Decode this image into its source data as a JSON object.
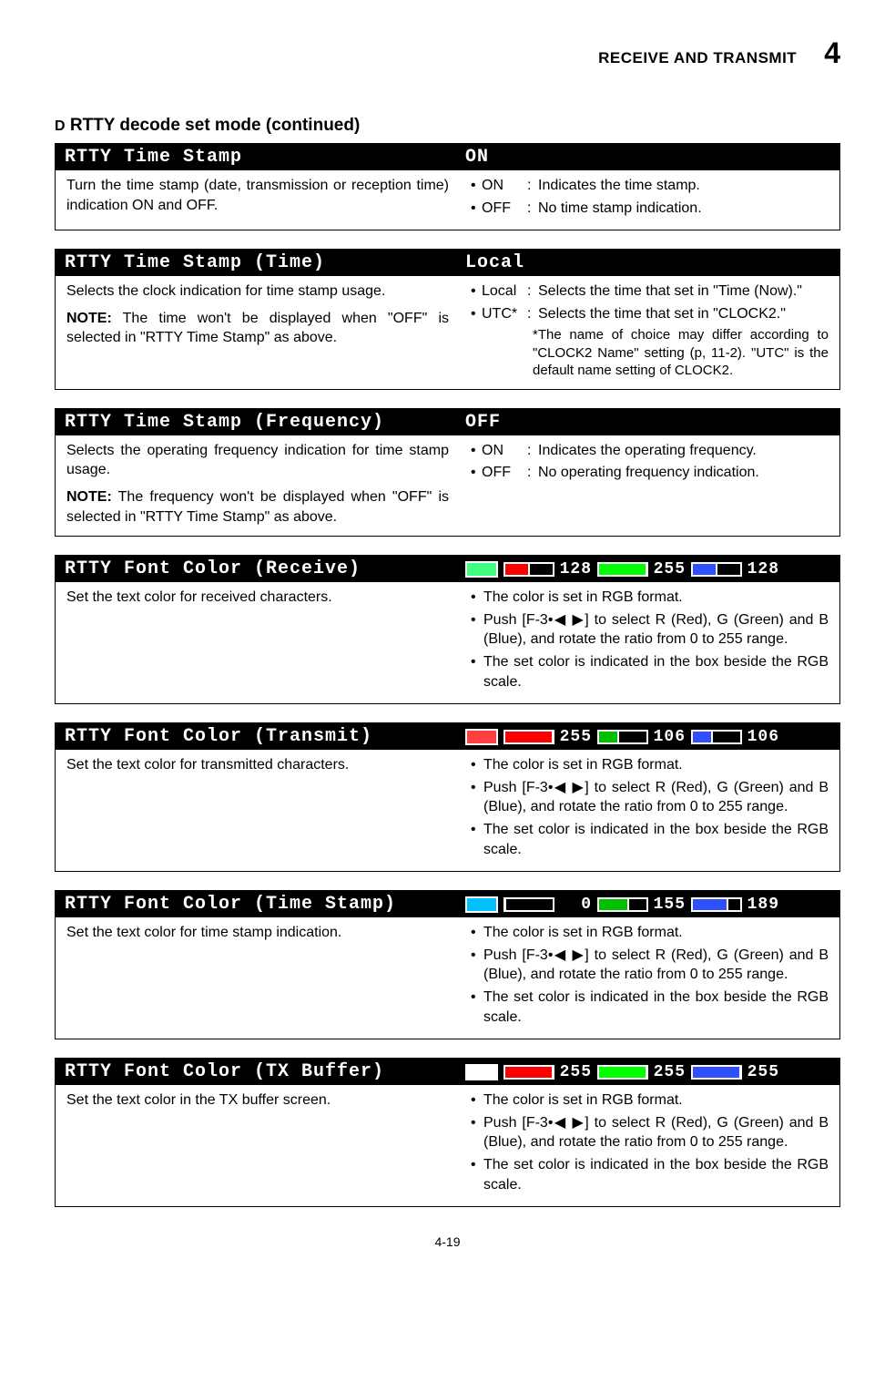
{
  "header": {
    "section_title": "RECEIVE AND TRANSMIT",
    "chapter": "4"
  },
  "page_title_prefix": "D",
  "page_title": "RTTY decode set mode (continued)",
  "footer": "4-19",
  "sections": [
    {
      "bar_title": "RTTY Time Stamp",
      "bar_value": "ON",
      "left_main": "Turn the time stamp (date, transmission or reception time) indication ON and OFF.",
      "right_rows": [
        {
          "key": "ON",
          "val": "Indicates the time stamp."
        },
        {
          "key": "OFF",
          "val": "No time stamp indication."
        }
      ]
    },
    {
      "bar_title": "RTTY Time Stamp (Time)",
      "bar_value": "Local",
      "left_main": "Selects the clock indication for time stamp usage.",
      "left_note": "The time won't be displayed when \"OFF\" is selected in \"RTTY Time Stamp\" as above.",
      "right_rows": [
        {
          "key": "Local",
          "val": "Selects the time that set in \"Time (Now).\""
        },
        {
          "key": "UTC*",
          "val": "Selects the time that set in \"CLOCK2.\""
        }
      ],
      "footnote": "*The name of choice may differ according to \"CLOCK2 Name\" setting (p, 11-2). \"UTC\" is the default name setting of CLOCK2."
    },
    {
      "bar_title": "RTTY Time Stamp (Frequency)",
      "bar_value": "OFF",
      "left_main": "Selects the operating frequency indication for time stamp usage.",
      "left_note": "The frequency won't be displayed when \"OFF\" is selected in \"RTTY Time Stamp\" as above.",
      "right_rows": [
        {
          "key": "ON",
          "val": "Indicates the operating frequency."
        },
        {
          "key": "OFF",
          "val": "No operating frequency indication."
        }
      ]
    },
    {
      "bar_title": "RTTY Font Color (Receive)",
      "rgb": {
        "swatch": "#40ff80",
        "r": {
          "val": 128,
          "fill": "#ff0000",
          "pct": 50
        },
        "g": {
          "val": 255,
          "fill": "#00ff00",
          "pct": 100
        },
        "b": {
          "val": 128,
          "fill": "#3050ff",
          "pct": 50
        }
      },
      "left_main": "Set the text color for received characters.",
      "right_bullets": [
        "The color is set in RGB format.",
        "Push [F-3•◀ ▶] to select R (Red), G (Green) and B (Blue), and rotate the ratio from 0 to 255 range.",
        "The set color is indicated in the box beside the RGB scale."
      ]
    },
    {
      "bar_title": "RTTY Font Color (Transmit)",
      "rgb": {
        "swatch": "#ff4040",
        "r": {
          "val": 255,
          "fill": "#ff0000",
          "pct": 100
        },
        "g": {
          "val": 106,
          "fill": "#00c000",
          "pct": 41
        },
        "b": {
          "val": 106,
          "fill": "#3050ff",
          "pct": 41
        }
      },
      "left_main": "Set the text color for transmitted characters.",
      "right_bullets": [
        "The color is set in RGB format.",
        "Push [F-3•◀ ▶] to select R (Red), G (Green) and B (Blue), and rotate the ratio from 0 to 255 range.",
        "The set color is indicated in the box beside the RGB scale."
      ]
    },
    {
      "bar_title": "RTTY Font Color (Time Stamp)",
      "rgb": {
        "swatch": "#00c0ff",
        "r": {
          "val": 0,
          "fill": "#ff0000",
          "pct": 0
        },
        "g": {
          "val": 155,
          "fill": "#00c000",
          "pct": 61
        },
        "b": {
          "val": 189,
          "fill": "#3050ff",
          "pct": 74
        }
      },
      "left_main": "Set the text color for time stamp indication.",
      "right_bullets": [
        "The color is set in RGB format.",
        "Push [F-3•◀ ▶] to select R (Red), G (Green) and B (Blue), and rotate the ratio from 0 to 255 range.",
        "The set color is indicated in the box beside the RGB scale."
      ]
    },
    {
      "bar_title": "RTTY Font Color (TX Buffer)",
      "rgb": {
        "swatch": "#ffffff",
        "r": {
          "val": 255,
          "fill": "#ff0000",
          "pct": 100
        },
        "g": {
          "val": 255,
          "fill": "#00ff00",
          "pct": 100
        },
        "b": {
          "val": 255,
          "fill": "#3050ff",
          "pct": 100
        }
      },
      "left_main": "Set the text color in the TX buffer screen.",
      "right_bullets": [
        "The color is set in RGB format.",
        "Push [F-3•◀ ▶] to select R (Red), G (Green) and B (Blue), and rotate the ratio from 0 to 255 range.",
        "The set color is indicated in the box beside the RGB scale."
      ]
    }
  ],
  "note_label": "NOTE:"
}
